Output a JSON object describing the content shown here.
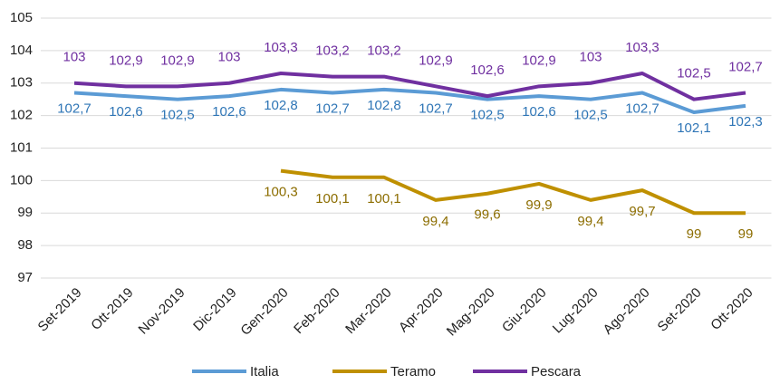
{
  "chart_data": {
    "type": "line",
    "categories": [
      "Set-2019",
      "Ott-2019",
      "Nov-2019",
      "Dic-2019",
      "Gen-2020",
      "Feb-2020",
      "Mar-2020",
      "Apr-2020",
      "Mag-2020",
      "Giu-2020",
      "Lug-2020",
      "Ago-2020",
      "Set-2020",
      "Ott-2020"
    ],
    "series": [
      {
        "name": "Italia",
        "color": "#5b9bd5",
        "label_color": "#2e75b6",
        "values": [
          102.7,
          102.6,
          102.5,
          102.6,
          102.8,
          102.7,
          102.8,
          102.7,
          102.5,
          102.6,
          102.5,
          102.7,
          102.1,
          102.3
        ],
        "value_labels": [
          "102,7",
          "102,6",
          "102,5",
          "102,6",
          "102,8",
          "102,7",
          "102,8",
          "102,7",
          "102,5",
          "102,6",
          "102,5",
          "102,7",
          "102,1",
          "102,3"
        ]
      },
      {
        "name": "Teramo",
        "color": "#bf9000",
        "label_color": "#8c6d00",
        "values": [
          null,
          null,
          null,
          null,
          100.3,
          100.1,
          100.1,
          99.4,
          99.6,
          99.9,
          99.4,
          99.7,
          99,
          99
        ],
        "value_labels": [
          null,
          null,
          null,
          null,
          "100,3",
          "100,1",
          "100,1",
          "99,4",
          "99,6",
          "99,9",
          "99,4",
          "99,7",
          "99",
          "99"
        ]
      },
      {
        "name": "Pescara",
        "color": "#7030a0",
        "label_color": "#7030a0",
        "values": [
          103,
          102.9,
          102.9,
          103,
          103.3,
          103.2,
          103.2,
          102.9,
          102.6,
          102.9,
          103,
          103.3,
          102.5,
          102.7
        ],
        "value_labels": [
          "103",
          "102,9",
          "102,9",
          "103",
          "103,3",
          "103,2",
          "103,2",
          "102,9",
          "102,6",
          "102,9",
          "103",
          "103,3",
          "102,5",
          "102,7"
        ]
      }
    ],
    "ylim": [
      97,
      105
    ],
    "yticks": [
      97,
      98,
      99,
      100,
      101,
      102,
      103,
      104,
      105
    ],
    "grid": true,
    "legend": "bottom"
  }
}
